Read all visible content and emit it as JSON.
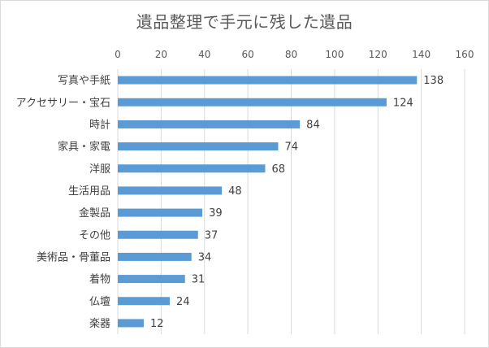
{
  "chart_data": {
    "type": "bar",
    "orientation": "horizontal",
    "title": "遺品整理で手元に残した遺品",
    "categories": [
      "写真や手紙",
      "アクセサリー・宝石",
      "時計",
      "家具・家電",
      "洋服",
      "生活用品",
      "金製品",
      "その他",
      "美術品・骨董品",
      "着物",
      "仏壇",
      "楽器"
    ],
    "values": [
      138,
      124,
      84,
      74,
      68,
      48,
      39,
      37,
      34,
      31,
      24,
      12
    ],
    "xlim": [
      0,
      160
    ],
    "xticks": [
      0,
      20,
      40,
      60,
      80,
      100,
      120,
      140,
      160
    ],
    "x_axis_position": "top",
    "grid": true,
    "legend": "none",
    "bar_color": "#5b9bd5",
    "grid_color": "#d9d9d9"
  }
}
